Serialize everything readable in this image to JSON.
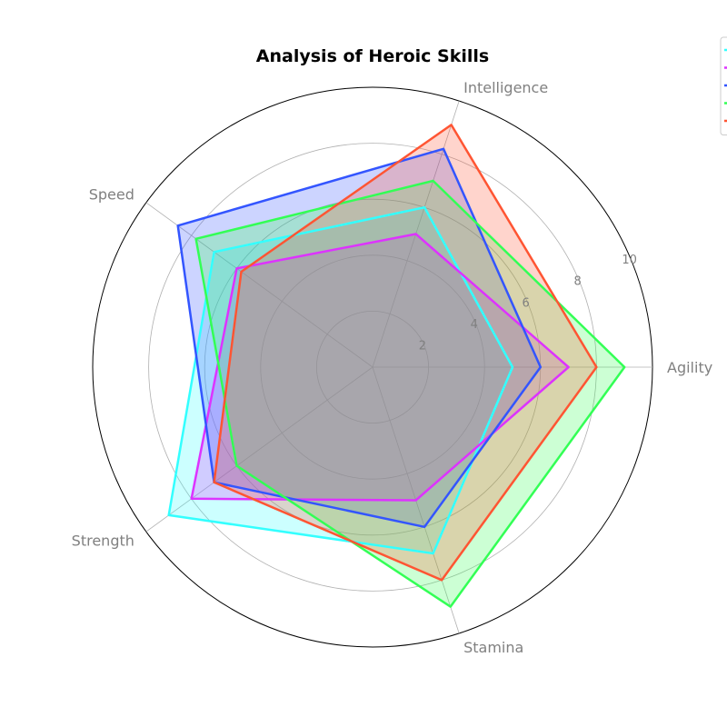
{
  "chart_data": {
    "type": "radar",
    "title": "Analysis of Heroic Skills",
    "axes": [
      "Agility",
      "Intelligence",
      "Speed",
      "Strength",
      "Stamina"
    ],
    "rlim": [
      0,
      10
    ],
    "r_ticks": [
      2,
      4,
      6,
      8,
      10
    ],
    "grid": true,
    "legend": "top-right",
    "series": [
      {
        "color": "#33ffff",
        "values": [
          5,
          6,
          7,
          9,
          7
        ]
      },
      {
        "color": "#dd33ff",
        "values": [
          7,
          5,
          6,
          8,
          5
        ]
      },
      {
        "color": "#3355ff",
        "values": [
          6,
          8.2,
          8.6,
          7,
          6
        ]
      },
      {
        "color": "#33ff55",
        "values": [
          9,
          7,
          7.8,
          6,
          9
        ]
      },
      {
        "color": "#ff5533",
        "values": [
          8,
          9.1,
          5.8,
          7,
          8
        ]
      }
    ]
  }
}
